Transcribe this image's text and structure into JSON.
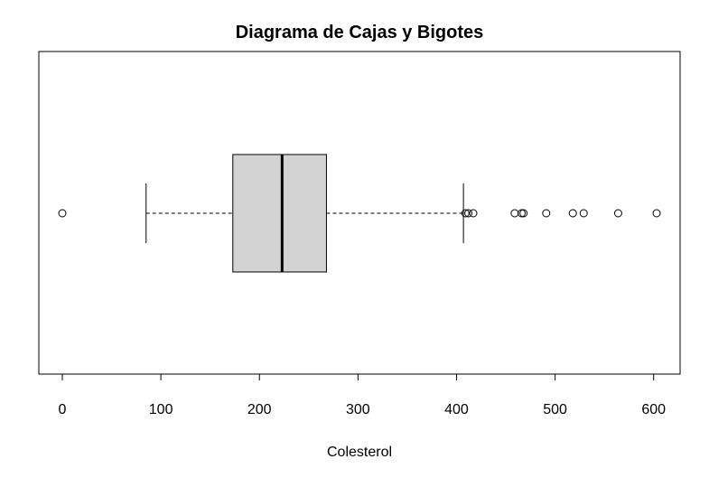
{
  "chart_data": {
    "type": "boxplot",
    "orientation": "horizontal",
    "title": "Diagrama de Cajas y Bigotes",
    "xlabel": "Colesterol",
    "ylabel": "",
    "xlim": [
      0,
      603
    ],
    "xticks": [
      0,
      100,
      200,
      300,
      400,
      500,
      600
    ],
    "xtick_labels": [
      "0",
      "100",
      "200",
      "300",
      "400",
      "500",
      "600"
    ],
    "box": {
      "whisker_low": 85,
      "q1": 173,
      "median": 223,
      "q3": 268,
      "whisker_high": 407
    },
    "outliers": [
      0,
      409,
      412,
      417,
      459,
      466,
      468,
      491,
      518,
      529,
      564,
      603
    ],
    "box_fill": "#d3d3d3",
    "line_color": "#000000",
    "grid": false,
    "legend": "none"
  }
}
